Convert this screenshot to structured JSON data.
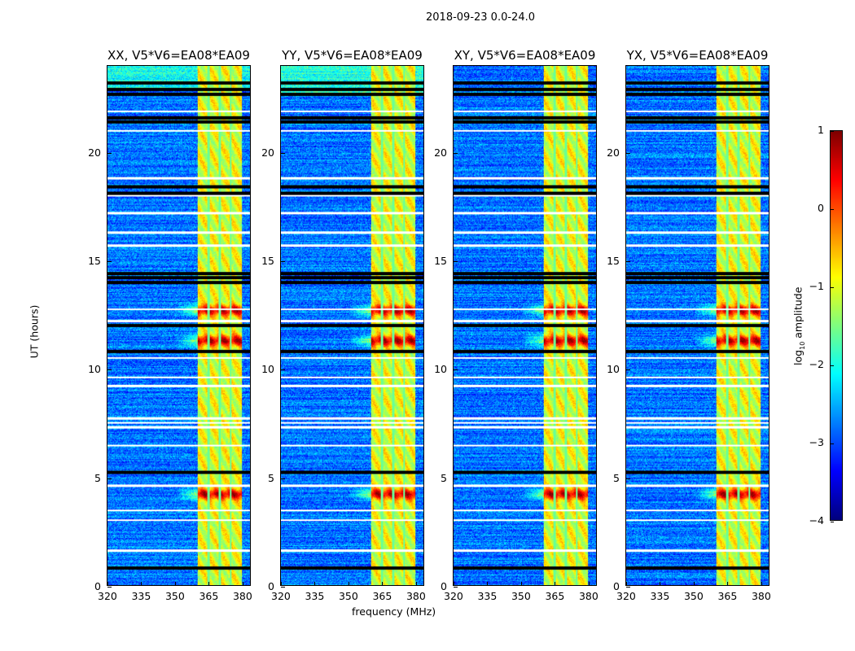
{
  "suptitle": "2018-09-23 0.0-24.0",
  "chart_data": {
    "type": "heatmap",
    "panels": [
      {
        "title": "XX, V5*V6=EA08*EA09"
      },
      {
        "title": "YY, V5*V6=EA08*EA09"
      },
      {
        "title": "XY, V5*V6=EA08*EA09"
      },
      {
        "title": "YX, V5*V6=EA08*EA09"
      }
    ],
    "xlabel": "frequency (MHz)",
    "ylabel": "UT (hours)",
    "xlim": [
      320,
      384
    ],
    "ylim": [
      0,
      24
    ],
    "xticks": [
      "320",
      "335",
      "350",
      "365",
      "380"
    ],
    "xtick_values": [
      320,
      335,
      350,
      365,
      380
    ],
    "yticks": [
      "0",
      "5",
      "10",
      "15",
      "20"
    ],
    "ytick_values": [
      0,
      5,
      10,
      15,
      20
    ],
    "colorbar": {
      "label": "log10 amplitude",
      "label_main": "log",
      "label_sub": "10",
      "label_rest": " amplitude",
      "colormap": "jet",
      "range": [
        -4,
        1
      ],
      "ticks": [
        "1",
        "0",
        "−1",
        "−2",
        "−3",
        "−4"
      ],
      "tick_values": [
        1,
        0,
        -1,
        -2,
        -3,
        -4
      ]
    },
    "background_level": -2.8,
    "rfi_band_mhz": [
      360.5,
      380.5
    ],
    "band_level": -1.0,
    "channel_gaps_mhz": [
      365.3,
      370.5,
      375.3
    ],
    "bright_events_hours": [
      4.2,
      11.3,
      12.7
    ],
    "flagged_rows_hours": [
      21.9,
      21.0,
      18.8,
      18.0,
      17.2,
      16.3,
      15.7,
      12.75,
      12.2,
      10.5,
      9.6,
      9.2,
      7.7,
      7.5,
      7.3,
      6.45,
      4.6,
      3.45,
      3.0,
      1.6
    ],
    "black_rows_hours": [
      23.2,
      22.9,
      22.7,
      21.6,
      21.4,
      18.4,
      18.1,
      14.4,
      14.2,
      14.0,
      12.0,
      10.8,
      5.2,
      0.8
    ]
  }
}
